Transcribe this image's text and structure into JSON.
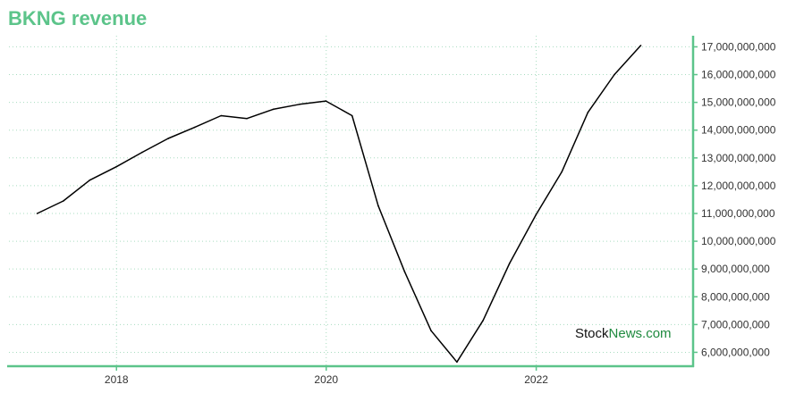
{
  "colors": {
    "accent": "#5cc48a",
    "line": "#000000",
    "grid": "#a8dcc0",
    "watermark_dark": "#111111",
    "watermark_green": "#1f8a3f"
  },
  "watermark": {
    "part1": "Stock",
    "part2": "News.com"
  },
  "chart_data": {
    "type": "line",
    "title": "BKNG revenue",
    "xlabel": "",
    "ylabel": "",
    "x_ticks": [
      {
        "date": "2018-01-01",
        "label": "2018"
      },
      {
        "date": "2020-01-01",
        "label": "2020"
      },
      {
        "date": "2022-01-01",
        "label": "2022"
      }
    ],
    "xlim": [
      "2017-01-01",
      "2023-07-01"
    ],
    "ylim": [
      5500000000,
      17400000000
    ],
    "y_ticks": [
      {
        "value": 6000000000,
        "label": "6,000,000,000"
      },
      {
        "value": 7000000000,
        "label": "7,000,000,000"
      },
      {
        "value": 8000000000,
        "label": "8,000,000,000"
      },
      {
        "value": 9000000000,
        "label": "9,000,000,000"
      },
      {
        "value": 10000000000,
        "label": "10,000,000,000"
      },
      {
        "value": 11000000000,
        "label": "11,000,000,000"
      },
      {
        "value": 12000000000,
        "label": "12,000,000,000"
      },
      {
        "value": 13000000000,
        "label": "13,000,000,000"
      },
      {
        "value": 14000000000,
        "label": "14,000,000,000"
      },
      {
        "value": 15000000000,
        "label": "15,000,000,000"
      },
      {
        "value": 16000000000,
        "label": "16,000,000,000"
      },
      {
        "value": 17000000000,
        "label": "17,000,000,000"
      }
    ],
    "grid": true,
    "legend": "none",
    "series": [
      {
        "points": [
          {
            "x": "2017-03-31",
            "y": 11000000000
          },
          {
            "x": "2017-06-30",
            "y": 11450000000
          },
          {
            "x": "2017-09-30",
            "y": 12200000000
          },
          {
            "x": "2017-12-31",
            "y": 12680000000
          },
          {
            "x": "2018-03-31",
            "y": 13200000000
          },
          {
            "x": "2018-06-30",
            "y": 13700000000
          },
          {
            "x": "2018-09-30",
            "y": 14100000000
          },
          {
            "x": "2018-12-31",
            "y": 14520000000
          },
          {
            "x": "2019-03-31",
            "y": 14420000000
          },
          {
            "x": "2019-06-30",
            "y": 14750000000
          },
          {
            "x": "2019-09-30",
            "y": 14930000000
          },
          {
            "x": "2019-12-31",
            "y": 15050000000
          },
          {
            "x": "2020-03-31",
            "y": 14520000000
          },
          {
            "x": "2020-06-30",
            "y": 11280000000
          },
          {
            "x": "2020-09-30",
            "y": 8900000000
          },
          {
            "x": "2020-12-31",
            "y": 6780000000
          },
          {
            "x": "2021-03-31",
            "y": 5650000000
          },
          {
            "x": "2021-06-30",
            "y": 7150000000
          },
          {
            "x": "2021-09-30",
            "y": 9200000000
          },
          {
            "x": "2021-12-31",
            "y": 10950000000
          },
          {
            "x": "2022-03-31",
            "y": 12500000000
          },
          {
            "x": "2022-06-30",
            "y": 14640000000
          },
          {
            "x": "2022-09-30",
            "y": 16000000000
          },
          {
            "x": "2022-12-31",
            "y": 17050000000
          }
        ]
      }
    ]
  }
}
